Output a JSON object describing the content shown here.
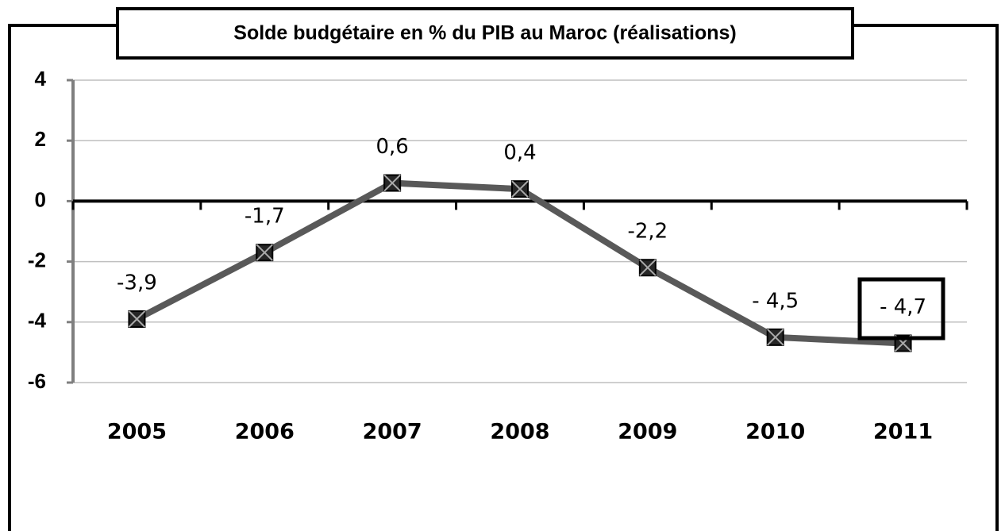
{
  "chart_data": {
    "type": "line",
    "title": "Solde budgétaire  en % du PIB au Maroc (réalisations)",
    "categories": [
      "2005",
      "2006",
      "2007",
      "2008",
      "2009",
      "2010",
      "2011"
    ],
    "values": [
      -3.9,
      -1.7,
      0.6,
      0.4,
      -2.2,
      -4.5,
      -4.7
    ],
    "value_labels": [
      "-3,9",
      "-1,7",
      "0,6",
      "0,4",
      "-2,2",
      "- 4,5",
      "- 4,7"
    ],
    "color": "#595959",
    "ylim": [
      -6,
      4
    ],
    "yticks": [
      -6,
      -4,
      -2,
      0,
      2,
      4
    ],
    "grid": true
  }
}
